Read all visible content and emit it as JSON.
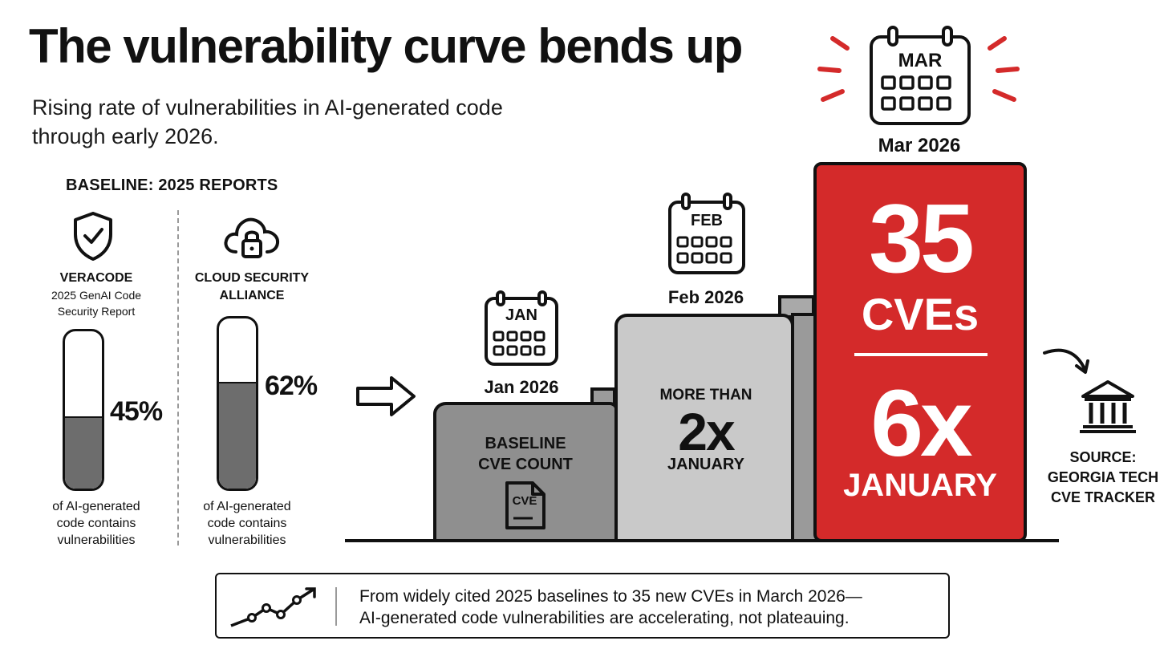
{
  "header": {
    "title": "The vulnerability curve bends up",
    "subtitle_line1": "Rising rate of vulnerabilities in AI-generated code",
    "subtitle_line2": "through early 2026."
  },
  "baseline": {
    "heading": "BASELINE: 2025 REPORTS",
    "sources": [
      {
        "name": "VERACODE",
        "sub_line1": "2025 GenAI Code",
        "sub_line2": "Security Report",
        "percent_label": "45%",
        "percent_value": 45,
        "caption_line1": "of AI-generated",
        "caption_line2": "code contains",
        "caption_line3": "vulnerabilities",
        "icon": "shield-check-icon"
      },
      {
        "name_line1": "CLOUD SECURITY",
        "name_line2": "ALLIANCE",
        "percent_label": "62%",
        "percent_value": 62,
        "caption_line1": "of AI-generated",
        "caption_line2": "code contains",
        "caption_line3": "vulnerabilities",
        "icon": "cloud-lock-icon"
      }
    ]
  },
  "months": [
    {
      "calendar_label": "JAN",
      "label": "Jan 2026",
      "bar_line1": "BASELINE",
      "bar_line2": "CVE COUNT",
      "doc_label": "CVE",
      "level": 1
    },
    {
      "calendar_label": "FEB",
      "label": "Feb 2026",
      "bar_line1": "MORE THAN",
      "bar_big": "2x",
      "bar_line3": "JANUARY",
      "level": 2
    },
    {
      "calendar_label": "MAR",
      "label": "Mar 2026",
      "bar_big1": "35",
      "bar_big2": "CVEs",
      "bar_big3": "6x",
      "bar_line4": "JANUARY",
      "level": 6
    }
  ],
  "source": {
    "line1": "SOURCE:",
    "line2": "GEORGIA TECH",
    "line3": "CVE TRACKER",
    "icon": "institution-icon"
  },
  "summary": {
    "line1": "From widely cited 2025 baselines to 35 new CVEs in March 2026—",
    "line2": "AI-generated code vulnerabilities are accelerating, not plateauing.",
    "icon": "trend-line-icon"
  },
  "colors": {
    "accent_red": "#d42a2a",
    "bar_dark_gray": "#8f8f8f",
    "bar_light_gray": "#c9c9c9",
    "fill_gray": "#6d6d6d"
  }
}
